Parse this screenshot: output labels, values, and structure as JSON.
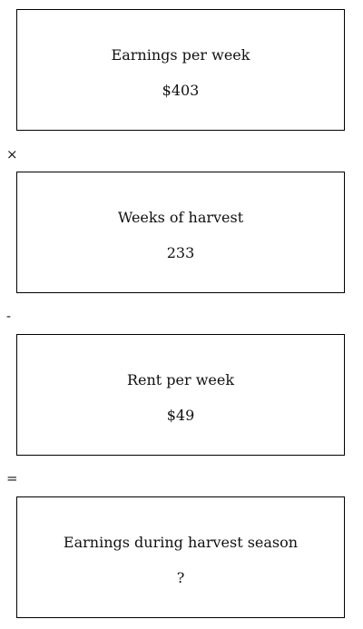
{
  "steps": [
    {
      "label": "Earnings per week",
      "value": "$403"
    },
    {
      "label": "Weeks of harvest",
      "value": "233"
    },
    {
      "label": "Rent per week",
      "value": "$49"
    },
    {
      "label": "Earnings during harvest season",
      "value": "?"
    }
  ],
  "operators": [
    "×",
    "-",
    "="
  ]
}
